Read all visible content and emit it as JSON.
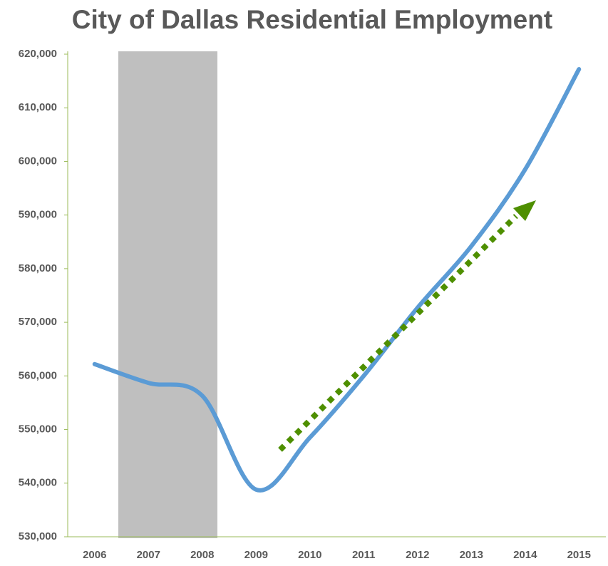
{
  "chart_data": {
    "type": "line",
    "title": "City of Dallas Residential Employment",
    "categories": [
      "2006",
      "2007",
      "2008",
      "2009",
      "2010",
      "2011",
      "2012",
      "2013",
      "2014",
      "2015"
    ],
    "series": [
      {
        "name": "Residential Employment",
        "color": "#5b9bd5",
        "values": [
          562200,
          558700,
          556300,
          538800,
          548500,
          560000,
          572700,
          584200,
          598500,
          617200
        ]
      }
    ],
    "ylim": [
      530000,
      620000
    ],
    "yticks": [
      {
        "value": 530000,
        "label": "530,000"
      },
      {
        "value": 540000,
        "label": "540,000"
      },
      {
        "value": 550000,
        "label": "550,000"
      },
      {
        "value": 560000,
        "label": "560,000"
      },
      {
        "value": 570000,
        "label": "570,000"
      },
      {
        "value": 580000,
        "label": "580,000"
      },
      {
        "value": 590000,
        "label": "590,000"
      },
      {
        "value": 600000,
        "label": "600,000"
      },
      {
        "value": 610000,
        "label": "610,000"
      },
      {
        "value": 620000,
        "label": "620,000"
      }
    ]
  }
}
